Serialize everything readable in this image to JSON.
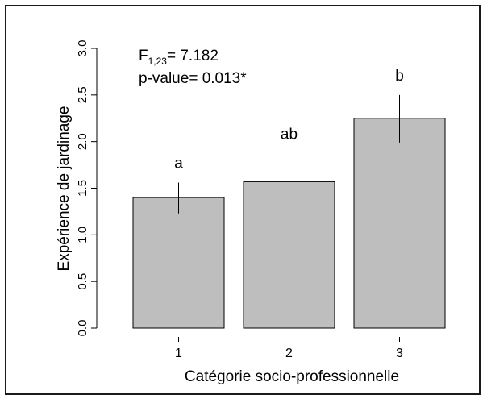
{
  "chart_data": {
    "type": "bar",
    "categories": [
      "1",
      "2",
      "3"
    ],
    "values": [
      1.4,
      1.57,
      2.25
    ],
    "error_low": [
      1.23,
      1.27,
      1.99
    ],
    "error_high": [
      1.56,
      1.87,
      2.5
    ],
    "significance_labels": [
      "a",
      "ab",
      "b"
    ],
    "xlabel": "Catégorie socio-professionnelle",
    "ylabel": "Expérience de jardinage",
    "ylim": [
      0,
      3.0
    ],
    "yticks": [
      "0.0",
      "0.5",
      "1.0",
      "1.5",
      "2.0",
      "2.5",
      "3.0"
    ],
    "grid": false,
    "colors": {
      "bar_fill": "#bebebe",
      "bar_stroke": "#000000",
      "error_bar": "#000000"
    },
    "annotation": {
      "stat_main": "F",
      "stat_sub": "1,23",
      "stat_value": "= 7.182",
      "pvalue": "p-value= 0.013*"
    }
  }
}
